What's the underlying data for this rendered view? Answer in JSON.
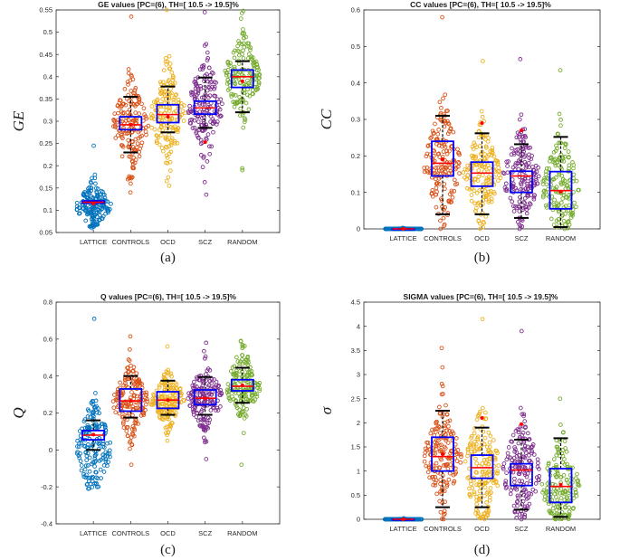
{
  "categories": [
    "LATTICE",
    "CONTROLS",
    "OCD",
    "SCZ",
    "RANDOM"
  ],
  "colors": {
    "LATTICE": "#0072bd",
    "CONTROLS": "#d95319",
    "OCD": "#edb120",
    "SCZ": "#7e2f8e",
    "RANDOM": "#77ac30",
    "box": "#0000ff",
    "median": "#ff0000",
    "whisker": "#000000"
  },
  "chart_data": [
    {
      "type": "box",
      "panel": "a",
      "caption": "(a)",
      "title": "GE values [PC=(6), TH=[ 10.5 -> 19.5]%",
      "ylabel": "GE",
      "ylim": [
        0.05,
        0.55
      ],
      "yticks": [
        "0.05",
        "0.1",
        "0.15",
        "0.2",
        "0.25",
        "0.3",
        "0.35",
        "0.4",
        "0.45",
        "0.5",
        "0.55"
      ],
      "series": [
        {
          "name": "LATTICE",
          "median": 0.118,
          "mean": 0.115,
          "q1": 0.116,
          "q3": 0.121,
          "wlo": 0.117,
          "whi": 0.119,
          "min": 0.06,
          "max": 0.245,
          "centre": 0.11
        },
        {
          "name": "CONTROLS",
          "median": 0.292,
          "mean": 0.292,
          "q1": 0.281,
          "q3": 0.31,
          "wlo": 0.23,
          "whi": 0.355,
          "min": 0.14,
          "max": 0.535,
          "centre": 0.29
        },
        {
          "name": "OCD",
          "median": 0.315,
          "mean": 0.31,
          "q1": 0.297,
          "q3": 0.337,
          "wlo": 0.275,
          "whi": 0.378,
          "min": 0.155,
          "max": 0.55,
          "centre": 0.31
        },
        {
          "name": "SCZ",
          "median": 0.33,
          "mean": 0.253,
          "q1": 0.316,
          "q3": 0.345,
          "wlo": 0.285,
          "whi": 0.398,
          "min": 0.135,
          "max": 0.545,
          "centre": 0.33
        },
        {
          "name": "RANDOM",
          "median": 0.4,
          "mean": 0.39,
          "q1": 0.376,
          "q3": 0.415,
          "wlo": 0.32,
          "whi": 0.435,
          "min": 0.19,
          "max": 0.548,
          "centre": 0.4
        }
      ]
    },
    {
      "type": "box",
      "panel": "b",
      "caption": "(b)",
      "title": "CC values [PC=(6), TH=[ 10.5 -> 19.5]%",
      "ylabel": "CC",
      "ylim": [
        0,
        0.6
      ],
      "yticks": [
        "0",
        "0.1",
        "0.2",
        "0.3",
        "0.4",
        "0.5",
        "0.6"
      ],
      "series": [
        {
          "name": "LATTICE",
          "median": 0,
          "mean": 0,
          "q1": 0,
          "q3": 0,
          "wlo": 0,
          "whi": 0,
          "min": 0,
          "max": 0.003,
          "centre": 0
        },
        {
          "name": "CONTROLS",
          "median": 0.18,
          "mean": 0.19,
          "q1": 0.145,
          "q3": 0.24,
          "wlo": 0.04,
          "whi": 0.31,
          "min": 0,
          "max": 0.58,
          "centre": 0.18
        },
        {
          "name": "OCD",
          "median": 0.153,
          "mean": 0.29,
          "q1": 0.117,
          "q3": 0.183,
          "wlo": 0.04,
          "whi": 0.262,
          "min": 0,
          "max": 0.46,
          "centre": 0.15
        },
        {
          "name": "SCZ",
          "median": 0.145,
          "mean": 0.27,
          "q1": 0.1,
          "q3": 0.158,
          "wlo": 0.03,
          "whi": 0.232,
          "min": 0,
          "max": 0.465,
          "centre": 0.14
        },
        {
          "name": "RANDOM",
          "median": 0.105,
          "mean": 0.102,
          "q1": 0.055,
          "q3": 0.157,
          "wlo": 0.005,
          "whi": 0.252,
          "min": 0,
          "max": 0.435,
          "centre": 0.11
        }
      ]
    },
    {
      "type": "box",
      "panel": "c",
      "caption": "(c)",
      "title": "Q values [PC=(6), TH=[ 10.5 -> 19.5]%",
      "ylabel": "Q",
      "ylim": [
        -0.4,
        0.8
      ],
      "yticks": [
        "-0.4",
        "-0.2",
        "0",
        "0.2",
        "0.4",
        "0.6",
        "0.8"
      ],
      "series": [
        {
          "name": "LATTICE",
          "median": 0.08,
          "mean": 0.083,
          "q1": 0.055,
          "q3": 0.105,
          "wlo": 0,
          "whi": 0.16,
          "min": -0.21,
          "max": 0.71,
          "centre": 0.01
        },
        {
          "name": "CONTROLS",
          "median": 0.265,
          "mean": 0.265,
          "q1": 0.21,
          "q3": 0.33,
          "wlo": 0.175,
          "whi": 0.4,
          "min": -0.08,
          "max": 0.615,
          "centre": 0.26
        },
        {
          "name": "OCD",
          "median": 0.27,
          "mean": 0.27,
          "q1": 0.225,
          "q3": 0.315,
          "wlo": 0.19,
          "whi": 0.375,
          "min": 0.05,
          "max": 0.56,
          "centre": 0.27
        },
        {
          "name": "SCZ",
          "median": 0.28,
          "mean": 0.28,
          "q1": 0.245,
          "q3": 0.325,
          "wlo": 0.19,
          "whi": 0.395,
          "min": -0.05,
          "max": 0.58,
          "centre": 0.28
        },
        {
          "name": "RANDOM",
          "median": 0.345,
          "mean": 0.35,
          "q1": 0.32,
          "q3": 0.38,
          "wlo": 0.255,
          "whi": 0.445,
          "min": -0.08,
          "max": 0.59,
          "centre": 0.35
        }
      ]
    },
    {
      "type": "box",
      "panel": "d",
      "caption": "(d)",
      "title": "SIGMA values [PC=(6), TH=[ 10.5 -> 19.5]%",
      "ylabel": "σ",
      "ylim": [
        0,
        4.5
      ],
      "yticks": [
        "0",
        "0.5",
        "1",
        "1.5",
        "2",
        "2.5",
        "3",
        "3.5",
        "4",
        "4.5"
      ],
      "series": [
        {
          "name": "LATTICE",
          "median": 0,
          "mean": 0,
          "q1": 0,
          "q3": 0,
          "wlo": 0,
          "whi": 0,
          "min": 0,
          "max": 0.02,
          "centre": 0
        },
        {
          "name": "CONTROLS",
          "median": 1.3,
          "mean": 1.35,
          "q1": 1.0,
          "q3": 1.7,
          "wlo": 0.25,
          "whi": 2.25,
          "min": 0,
          "max": 3.55,
          "centre": 1.3
        },
        {
          "name": "OCD",
          "median": 1.07,
          "mean": 2.1,
          "q1": 0.85,
          "q3": 1.33,
          "wlo": 0.25,
          "whi": 1.9,
          "min": 0,
          "max": 4.15,
          "centre": 1.05
        },
        {
          "name": "SCZ",
          "median": 1.02,
          "mean": 1.97,
          "q1": 0.7,
          "q3": 1.15,
          "wlo": 0.2,
          "whi": 1.65,
          "min": 0,
          "max": 3.9,
          "centre": 1.0
        },
        {
          "name": "RANDOM",
          "median": 0.68,
          "mean": 0.72,
          "q1": 0.35,
          "q3": 1.05,
          "wlo": 0.05,
          "whi": 1.68,
          "min": 0,
          "max": 2.5,
          "centre": 0.7
        }
      ]
    }
  ]
}
